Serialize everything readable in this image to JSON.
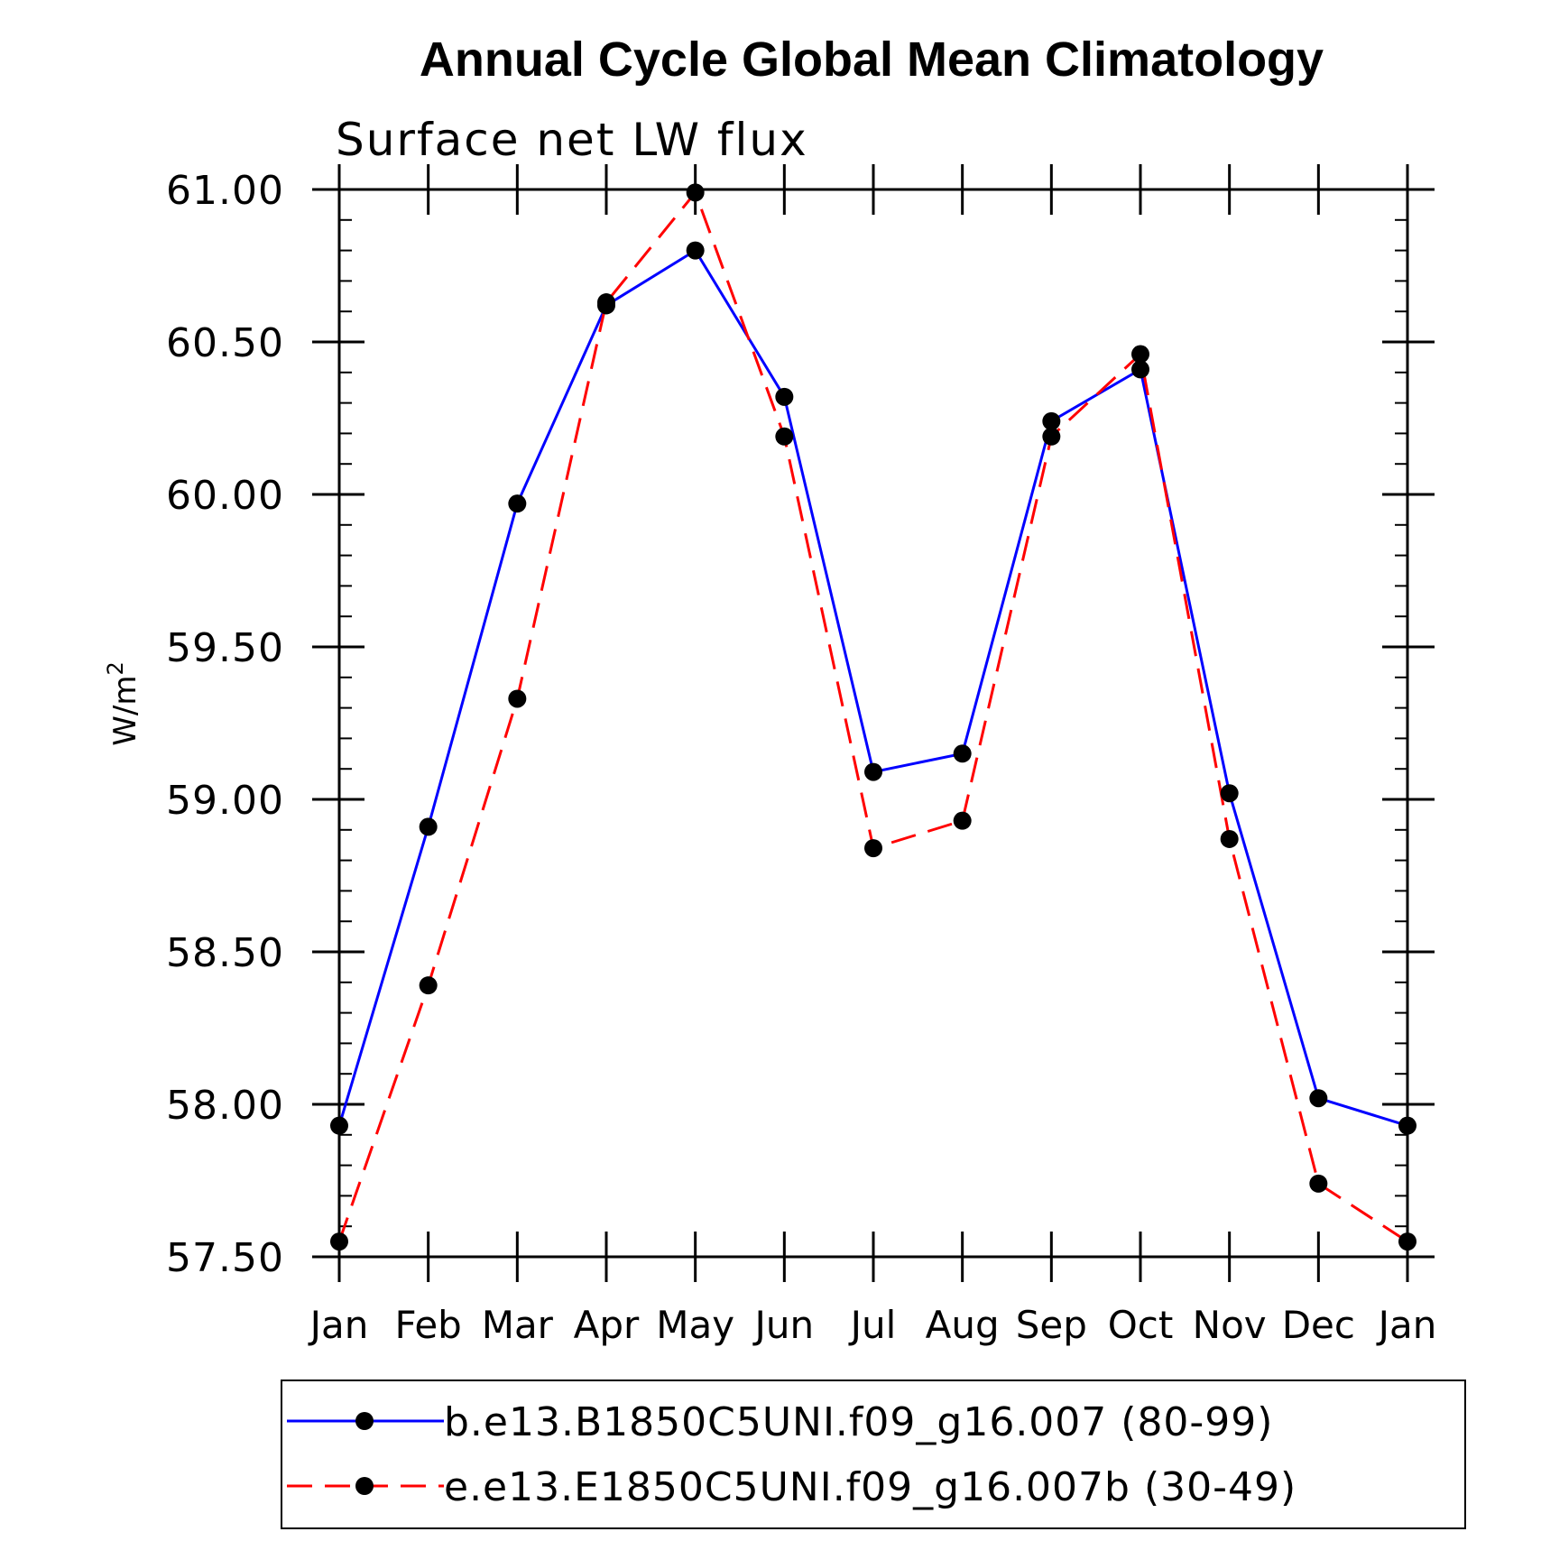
{
  "chart_data": {
    "type": "line",
    "title": "Annual Cycle Global Mean Climatology",
    "subtitle": "Surface net LW flux",
    "ylabel": "W/m",
    "ylabel_superscript": "2",
    "xlabel": "",
    "categories": [
      "Jan",
      "Feb",
      "Mar",
      "Apr",
      "May",
      "Jun",
      "Jul",
      "Aug",
      "Sep",
      "Oct",
      "Nov",
      "Dec",
      "Jan"
    ],
    "ylim": [
      57.5,
      61.0
    ],
    "yticks": [
      "57.50",
      "58.00",
      "58.50",
      "59.00",
      "59.50",
      "60.00",
      "60.50",
      "61.00"
    ],
    "ytick_values": [
      57.5,
      58.0,
      58.5,
      59.0,
      59.5,
      60.0,
      60.5,
      61.0
    ],
    "grid": false,
    "legend_position": "bottom",
    "series": [
      {
        "name": "b.e13.B1850C5UNI.f09_g16.007 (80-99)",
        "color": "#0000ff",
        "line_style": "solid",
        "marker": "filled-circle",
        "values": [
          57.93,
          58.91,
          59.97,
          60.62,
          60.8,
          60.32,
          59.09,
          59.15,
          60.24,
          60.41,
          59.02,
          58.02,
          57.93
        ]
      },
      {
        "name": "e.e13.E1850C5UNI.f09_g16.007b (30-49)",
        "color": "#ff0000",
        "line_style": "dashed",
        "marker": "filled-circle",
        "values": [
          57.55,
          58.39,
          59.33,
          60.63,
          60.99,
          60.19,
          58.84,
          58.93,
          60.19,
          60.46,
          58.87,
          57.74,
          57.55
        ]
      }
    ]
  }
}
